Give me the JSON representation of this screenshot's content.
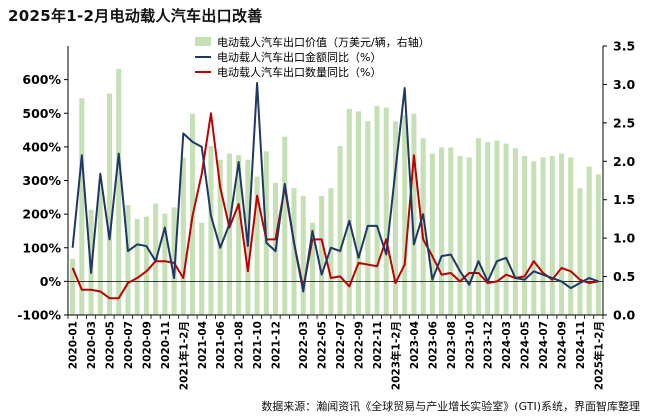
{
  "title": "2025年1-2月电动载人汽车出口改善",
  "source": "数据来源：瀚闻资讯《全球贸易与产业增长实验室》(GTI)系统，界面智库整理",
  "colors": {
    "bar": "#c5e0b4",
    "amount": "#203864",
    "volume": "#c00000",
    "grid": "#d9d9d9",
    "axis": "#000000"
  },
  "chart_data": {
    "type": "bar+line",
    "categories": [
      "2020-01",
      "2020-02",
      "2020-03",
      "2020-04",
      "2020-05",
      "2020-06",
      "2020-07",
      "2020-08",
      "2020-09",
      "2020-10",
      "2020-11",
      "2020-12",
      "2021-1~2月",
      "2021-03",
      "2021-04",
      "2021-05",
      "2021-06",
      "2021-07",
      "2021-08",
      "2021-09",
      "2021-10",
      "2021-11",
      "2021-12",
      "2022-01",
      "2022-02",
      "2022-03",
      "2022-04",
      "2022-05",
      "2022-06",
      "2022-07",
      "2022-08",
      "2022-09",
      "2022-10",
      "2022-11",
      "2022-12",
      "2023-1~2月",
      "2023-03",
      "2023-04",
      "2023-05",
      "2023-06",
      "2023-07",
      "2023-08",
      "2023-09",
      "2023-10",
      "2023-11",
      "2023-12",
      "2024-1~2月",
      "2024-03",
      "2024-04",
      "2024-05",
      "2024-06",
      "2024-07",
      "2024-08",
      "2024-09",
      "2024-10",
      "2024-11",
      "2024-12",
      "2025年1-2月"
    ],
    "tick_labels": [
      "2020-01",
      "2020-03",
      "2020-05",
      "2020-07",
      "2020-09",
      "2020-11",
      "2021年1-2月",
      "2021-04",
      "2021-06",
      "2021-08",
      "2021-10",
      "2021-12",
      "2022-03",
      "2022-05",
      "2022-07",
      "2022-09",
      "2022-11",
      "2023年1-2月",
      "2023-04",
      "2023-06",
      "2023-08",
      "2023-10",
      "2023-12",
      "2024-03",
      "2024-05",
      "2024-07",
      "2024-09",
      "2024-11",
      "2025年1-2月"
    ],
    "tick_indices": [
      0,
      2,
      4,
      6,
      8,
      10,
      12,
      14,
      16,
      18,
      20,
      22,
      25,
      27,
      29,
      31,
      33,
      35,
      37,
      39,
      41,
      43,
      45,
      47,
      49,
      51,
      53,
      55,
      57
    ],
    "series": [
      {
        "name": "电动载人汽车出口价值（万美元/辆，右轴）",
        "type": "bar",
        "axis": "right",
        "values": [
          0.73,
          2.82,
          1.37,
          1.67,
          2.88,
          3.2,
          1.43,
          1.25,
          1.28,
          1.45,
          1.32,
          1.4,
          2.05,
          2.62,
          1.2,
          2.2,
          2.02,
          2.1,
          2.08,
          2.02,
          1.8,
          2.13,
          1.72,
          2.32,
          1.65,
          1.55,
          1.2,
          1.55,
          1.65,
          2.2,
          2.68,
          2.65,
          2.52,
          2.72,
          2.7,
          2.52,
          2.6,
          2.62,
          2.3,
          2.1,
          2.18,
          2.18,
          2.07,
          2.05,
          2.3,
          2.25,
          2.27,
          2.23,
          2.17,
          2.07,
          2.0,
          2.05,
          2.07,
          2.1,
          2.05,
          1.65,
          1.93,
          1.83
        ]
      },
      {
        "name": "电动载人汽车出口金额同比（%）",
        "type": "line",
        "axis": "left",
        "values": [
          100,
          375,
          25,
          320,
          125,
          380,
          90,
          110,
          105,
          60,
          160,
          10,
          440,
          415,
          400,
          195,
          100,
          170,
          355,
          105,
          590,
          115,
          90,
          290,
          115,
          -30,
          150,
          20,
          100,
          90,
          180,
          70,
          165,
          165,
          80,
          330,
          575,
          110,
          200,
          5,
          75,
          80,
          30,
          -10,
          60,
          0,
          60,
          70,
          10,
          5,
          30,
          20,
          10,
          0,
          -20,
          -5,
          10,
          0
        ]
      },
      {
        "name": "电动载人汽车出口数量同比（%）",
        "type": "line",
        "axis": "left",
        "values": [
          40,
          -25,
          -25,
          -30,
          -50,
          -50,
          -5,
          10,
          30,
          60,
          60,
          55,
          10,
          195,
          320,
          500,
          280,
          160,
          230,
          30,
          255,
          125,
          125,
          280,
          115,
          -20,
          125,
          125,
          10,
          15,
          -15,
          55,
          50,
          45,
          125,
          -5,
          50,
          375,
          125,
          75,
          20,
          25,
          0,
          25,
          25,
          -5,
          0,
          20,
          10,
          15,
          60,
          25,
          5,
          40,
          30,
          5,
          -5,
          0
        ]
      }
    ],
    "y_left": {
      "min": -100,
      "max": 700,
      "ticks": [
        -100,
        0,
        100,
        200,
        300,
        400,
        500,
        600
      ],
      "tick_labels": [
        "-100%",
        "0%",
        "100%",
        "200%",
        "300%",
        "400%",
        "500%",
        "600%"
      ]
    },
    "y_right": {
      "min": 0,
      "max": 3.5,
      "ticks": [
        0,
        0.5,
        1,
        1.5,
        2,
        2.5,
        3,
        3.5
      ],
      "tick_labels": [
        "0.0",
        "0.5",
        "1.0",
        "1.5",
        "2.0",
        "2.5",
        "3.0",
        "3.5"
      ]
    },
    "legend_position": "top-center",
    "grid": false
  }
}
